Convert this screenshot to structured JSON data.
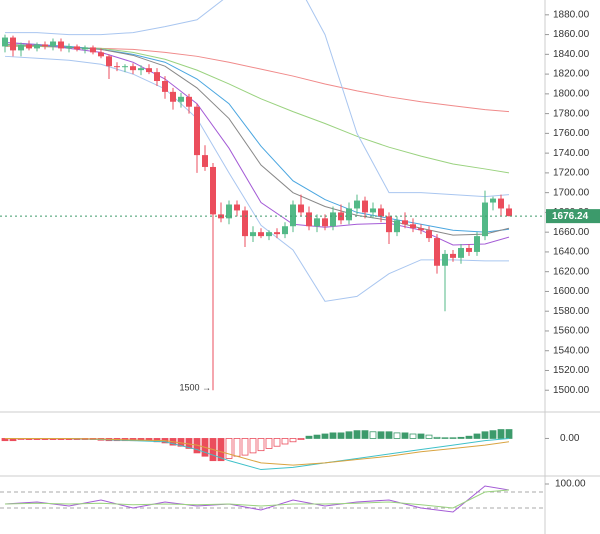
{
  "chart_data": [
    {
      "type": "candlestick",
      "open": [
        1848,
        1857,
        1844,
        1850,
        1846,
        1850,
        1848,
        1853,
        1846,
        1848,
        1845,
        1847,
        1842,
        1838,
        1828,
        1827,
        1828,
        1824,
        1826,
        1822,
        1813,
        1802,
        1792,
        1797,
        1787,
        1738,
        1726,
        1678,
        1674,
        1688,
        1682,
        1656,
        1660,
        1656,
        1660,
        1658,
        1666,
        1688,
        1680,
        1666,
        1674,
        1666,
        1680,
        1672,
        1684,
        1692,
        1680,
        1684,
        1676,
        1660,
        1672,
        1668,
        1664,
        1662,
        1654,
        1626,
        1638,
        1634,
        1644,
        1640,
        1656,
        1690,
        1694,
        1684
      ],
      "high": [
        1860,
        1859,
        1852,
        1854,
        1852,
        1853,
        1856,
        1856,
        1851,
        1850,
        1849,
        1849,
        1846,
        1840,
        1832,
        1830,
        1831,
        1829,
        1830,
        1826,
        1818,
        1806,
        1801,
        1800,
        1790,
        1748,
        1730,
        1690,
        1692,
        1692,
        1686,
        1666,
        1664,
        1662,
        1664,
        1670,
        1692,
        1698,
        1686,
        1678,
        1678,
        1686,
        1688,
        1690,
        1698,
        1696,
        1690,
        1688,
        1680,
        1676,
        1680,
        1674,
        1668,
        1666,
        1658,
        1642,
        1642,
        1648,
        1648,
        1660,
        1702,
        1696,
        1698,
        1688
      ],
      "low": [
        1842,
        1838,
        1838,
        1844,
        1843,
        1845,
        1844,
        1843,
        1842,
        1843,
        1841,
        1840,
        1836,
        1815,
        1823,
        1822,
        1820,
        1819,
        1820,
        1808,
        1795,
        1784,
        1786,
        1780,
        1720,
        1722,
        1500,
        1670,
        1668,
        1676,
        1645,
        1650,
        1654,
        1652,
        1654,
        1654,
        1660,
        1676,
        1662,
        1660,
        1662,
        1662,
        1668,
        1668,
        1678,
        1674,
        1674,
        1670,
        1648,
        1656,
        1664,
        1660,
        1658,
        1650,
        1618,
        1580,
        1630,
        1628,
        1636,
        1636,
        1652,
        1682,
        1676,
        1676
      ],
      "close": [
        1857,
        1844,
        1850,
        1846,
        1850,
        1848,
        1853,
        1846,
        1848,
        1845,
        1847,
        1842,
        1838,
        1828,
        1827,
        1828,
        1824,
        1826,
        1822,
        1813,
        1802,
        1792,
        1797,
        1787,
        1738,
        1726,
        1678,
        1674,
        1688,
        1682,
        1656,
        1660,
        1656,
        1660,
        1658,
        1666,
        1688,
        1680,
        1666,
        1674,
        1666,
        1680,
        1672,
        1684,
        1692,
        1680,
        1684,
        1676,
        1660,
        1672,
        1668,
        1664,
        1662,
        1654,
        1626,
        1638,
        1634,
        1644,
        1640,
        1656,
        1690,
        1694,
        1684,
        1676.24
      ],
      "up_color": "#53b987",
      "down_color": "#eb4d5c",
      "annotation": "1500 →",
      "ylim": [
        1480,
        1895
      ],
      "yticks": [
        {
          "value": 1500,
          "label": "1500.00"
        },
        {
          "value": 1520,
          "label": "1520.00"
        },
        {
          "value": 1540,
          "label": "1540.00"
        },
        {
          "value": 1560,
          "label": "1560.00"
        },
        {
          "value": 1580,
          "label": "1580.00"
        },
        {
          "value": 1600,
          "label": "1600.00"
        },
        {
          "value": 1620,
          "label": "1620.00"
        },
        {
          "value": 1640,
          "label": "1640.00"
        },
        {
          "value": 1660,
          "label": "1660.00"
        },
        {
          "value": 1680,
          "label": "1680.00"
        },
        {
          "value": 1700,
          "label": "1700.00"
        },
        {
          "value": 1720,
          "label": "1720.00"
        },
        {
          "value": 1740,
          "label": "1740.00"
        },
        {
          "value": 1760,
          "label": "1760.00"
        },
        {
          "value": 1780,
          "label": "1780.00"
        },
        {
          "value": 1800,
          "label": "1800.00"
        },
        {
          "value": 1820,
          "label": "1820.00"
        },
        {
          "value": 1840,
          "label": "1840.00"
        },
        {
          "value": 1860,
          "label": "1860.00"
        },
        {
          "value": 1880,
          "label": "1880.00"
        }
      ],
      "overlay_x": [
        0,
        4,
        8,
        12,
        16,
        20,
        24,
        28,
        32,
        36,
        40,
        44,
        48,
        52,
        56,
        60,
        63
      ],
      "overlays": [
        {
          "color": "#f08a8a",
          "values": [
            1848,
            1848,
            1847,
            1846,
            1845,
            1842,
            1838,
            1832,
            1825,
            1818,
            1810,
            1803,
            1797,
            1792,
            1788,
            1784,
            1782
          ]
        },
        {
          "color": "#9ad27f",
          "values": [
            1849,
            1848,
            1847,
            1846,
            1842,
            1835,
            1824,
            1810,
            1795,
            1782,
            1770,
            1757,
            1746,
            1737,
            1729,
            1724,
            1720
          ]
        },
        {
          "color": "#4aa6e0",
          "values": [
            1852,
            1850,
            1848,
            1845,
            1840,
            1832,
            1815,
            1790,
            1747,
            1712,
            1693,
            1680,
            1674,
            1668,
            1662,
            1660,
            1663
          ]
        },
        {
          "color": "#888888",
          "values": [
            1850,
            1849,
            1847,
            1845,
            1839,
            1828,
            1806,
            1775,
            1728,
            1700,
            1686,
            1677,
            1672,
            1664,
            1657,
            1658,
            1664
          ]
        },
        {
          "color": "#a45bd6",
          "values": [
            1852,
            1850,
            1846,
            1842,
            1832,
            1815,
            1790,
            1745,
            1690,
            1668,
            1665,
            1668,
            1669,
            1662,
            1647,
            1648,
            1655
          ]
        },
        {
          "color": "#a9c6f0",
          "values": [
            1862,
            1862,
            1860,
            1860,
            1862,
            1868,
            1875,
            1900,
            1930,
            1920,
            1860,
            1760,
            1700,
            1700,
            1698,
            1696,
            1698
          ]
        },
        {
          "color": "#a9c6f0",
          "values": [
            1838,
            1836,
            1834,
            1830,
            1820,
            1805,
            1775,
            1720,
            1667,
            1642,
            1590,
            1595,
            1618,
            1632,
            1632,
            1631,
            1631
          ]
        }
      ]
    },
    {
      "type": "bar",
      "values": [
        -1,
        -1,
        -0.5,
        -0.5,
        -0.5,
        -0.5,
        -0.5,
        -0.5,
        -0.5,
        -0.5,
        -0.5,
        -0.5,
        -0.8,
        -1,
        -1,
        -1,
        -1,
        -1,
        -1.2,
        -1.5,
        -2,
        -3,
        -3.5,
        -4.5,
        -6.5,
        -8,
        -10,
        -10,
        -9,
        -8,
        -7.5,
        -6.5,
        -5.5,
        -4.5,
        -3.5,
        -2.5,
        -1.5,
        -0.5,
        1,
        1.5,
        2,
        2.5,
        2.5,
        3,
        3.5,
        3.5,
        3,
        3,
        3,
        2.5,
        2.5,
        2,
        2,
        1.5,
        0.5,
        0.3,
        0.3,
        0.5,
        1,
        2,
        3,
        3.5,
        4,
        4
      ],
      "up_color": "#3c9a6b",
      "down_color": "#eb4d5c",
      "ylim": [
        -16,
        11
      ],
      "yticks": [
        {
          "value": 0,
          "label": "0.00"
        }
      ],
      "line_x": [
        0,
        4,
        8,
        12,
        16,
        20,
        24,
        28,
        32,
        36,
        40,
        44,
        48,
        52,
        56,
        60,
        63
      ],
      "lines": [
        {
          "color": "#3fc1c9",
          "values": [
            0,
            0,
            0,
            -0.5,
            -1,
            -1.5,
            -5,
            -10,
            -14,
            -13,
            -11,
            -9,
            -7,
            -5,
            -3,
            -1,
            0
          ]
        },
        {
          "color": "#d9a441",
          "values": [
            0,
            0,
            0,
            -0.3,
            -0.7,
            -1,
            -3,
            -7,
            -11,
            -12,
            -11,
            -9.5,
            -8,
            -6,
            -4.5,
            -3,
            -1.5
          ]
        }
      ]
    },
    {
      "type": "line",
      "x": [
        0,
        4,
        8,
        12,
        16,
        20,
        24,
        28,
        32,
        36,
        40,
        44,
        48,
        52,
        56,
        60,
        63
      ],
      "series": [
        {
          "color": "#a45bd6",
          "values": [
            50,
            55,
            45,
            60,
            40,
            55,
            45,
            50,
            35,
            60,
            45,
            55,
            60,
            40,
            30,
            95,
            85
          ]
        },
        {
          "color": "#9ad27f",
          "values": [
            50,
            52,
            50,
            52,
            48,
            50,
            48,
            50,
            45,
            50,
            50,
            52,
            55,
            48,
            40,
            80,
            85
          ]
        }
      ],
      "ylim": [
        -20,
        115
      ],
      "yticks": [
        {
          "value": 100,
          "label": "100.00"
        }
      ],
      "levels": [
        80,
        40
      ]
    }
  ]
}
